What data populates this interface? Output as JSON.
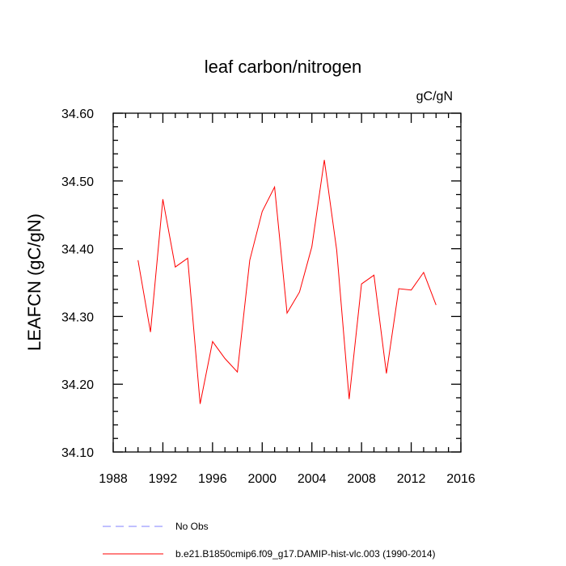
{
  "chart_data": {
    "type": "line",
    "title": "leaf carbon/nitrogen",
    "units_label": "gC/gN",
    "ylabel": "LEAFCN  (gC/gN)",
    "xlabel": "",
    "xlim": [
      1988,
      2016
    ],
    "ylim": [
      34.1,
      34.6
    ],
    "x_ticks": [
      1988,
      1992,
      1996,
      2000,
      2004,
      2008,
      2012,
      2016
    ],
    "y_ticks": [
      34.1,
      34.2,
      34.3,
      34.4,
      34.5,
      34.6
    ],
    "y_tick_labels": [
      "34.10",
      "34.20",
      "34.30",
      "34.40",
      "34.50",
      "34.60"
    ],
    "series": [
      {
        "name": "b.e21.B1850cmip6.f09_g17.DAMIP-hist-vlc.003 (1990-2014)",
        "color": "#ff0000",
        "style": "solid",
        "x": [
          1990,
          1991,
          1992,
          1993,
          1994,
          1995,
          1996,
          1997,
          1998,
          1999,
          2000,
          2001,
          2002,
          2003,
          2004,
          2005,
          2006,
          2007,
          2008,
          2009,
          2010,
          2011,
          2012,
          2013,
          2014
        ],
        "values": [
          34.383,
          34.277,
          34.473,
          34.373,
          34.386,
          34.171,
          34.263,
          34.238,
          34.218,
          34.383,
          34.455,
          34.491,
          34.305,
          34.336,
          34.403,
          34.531,
          34.398,
          34.178,
          34.348,
          34.361,
          34.216,
          34.341,
          34.339,
          34.365,
          34.317
        ]
      }
    ],
    "legend": [
      {
        "label": "No Obs",
        "color": "#8080ff",
        "style": "dashed"
      },
      {
        "label": "b.e21.B1850cmip6.f09_g17.DAMIP-hist-vlc.003 (1990-2014)",
        "color": "#ff0000",
        "style": "solid"
      }
    ]
  }
}
